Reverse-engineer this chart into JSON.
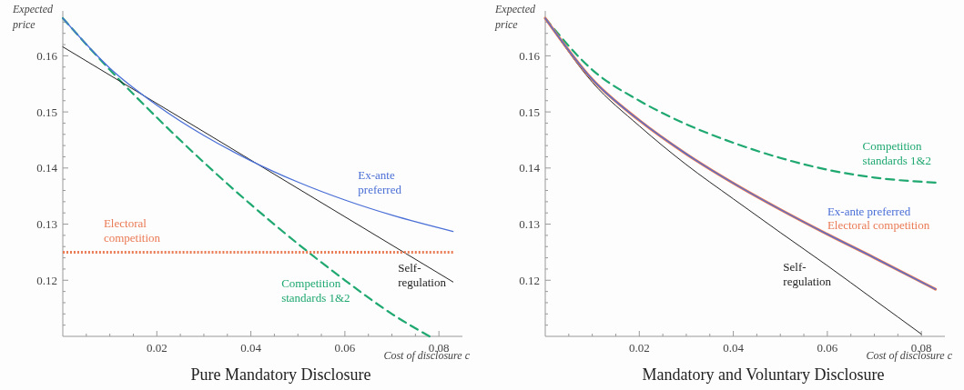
{
  "chart_data": [
    {
      "type": "line",
      "title": "Pure Mandatory Disclosure",
      "xlabel": "Cost of disclosure c",
      "ylabel": "Expected price",
      "xlim": [
        0,
        0.085
      ],
      "ylim": [
        0.11,
        0.168
      ],
      "xticks": [
        {
          "value": 0.005,
          "label": null
        },
        {
          "value": 0.01,
          "label": null
        },
        {
          "value": 0.015,
          "label": null
        },
        0.02,
        {
          "value": 0.025,
          "label": null
        },
        {
          "value": 0.03,
          "label": null
        },
        {
          "value": 0.035,
          "label": null
        },
        0.04,
        {
          "value": 0.045,
          "label": null
        },
        {
          "value": 0.05,
          "label": null
        },
        {
          "value": 0.055,
          "label": null
        },
        0.06,
        {
          "value": 0.065,
          "label": null
        },
        {
          "value": 0.07,
          "label": null
        },
        {
          "value": 0.075,
          "label": null
        },
        0.08
      ],
      "yticks": [
        {
          "value": 0.112,
          "label": null
        },
        {
          "value": 0.114,
          "label": null
        },
        {
          "value": 0.116,
          "label": null
        },
        {
          "value": 0.118,
          "label": null
        },
        0.12,
        {
          "value": 0.122,
          "label": null
        },
        {
          "value": 0.124,
          "label": null
        },
        {
          "value": 0.126,
          "label": null
        },
        {
          "value": 0.128,
          "label": null
        },
        0.13,
        {
          "value": 0.132,
          "label": null
        },
        {
          "value": 0.134,
          "label": null
        },
        {
          "value": 0.136,
          "label": null
        },
        {
          "value": 0.138,
          "label": null
        },
        0.14,
        {
          "value": 0.142,
          "label": null
        },
        {
          "value": 0.144,
          "label": null
        },
        {
          "value": 0.146,
          "label": null
        },
        {
          "value": 0.148,
          "label": null
        },
        0.15,
        {
          "value": 0.152,
          "label": null
        },
        {
          "value": 0.154,
          "label": null
        },
        {
          "value": 0.156,
          "label": null
        },
        {
          "value": 0.158,
          "label": null
        },
        0.16,
        {
          "value": 0.162,
          "label": null
        },
        {
          "value": 0.164,
          "label": null
        },
        {
          "value": 0.166,
          "label": null
        }
      ],
      "grid": false,
      "legend": false,
      "series": [
        {
          "name": "Ex-ante preferred",
          "color": "#4a6fd6",
          "line_style": "solid",
          "x": [
            0,
            0.01,
            0.02,
            0.03,
            0.04,
            0.05,
            0.06,
            0.07,
            0.083
          ],
          "values": [
            0.1667,
            0.1578,
            0.1512,
            0.1458,
            0.1413,
            0.1375,
            0.1343,
            0.1316,
            0.1287
          ]
        },
        {
          "name": "Electoral competition",
          "color": "#ea7a55",
          "line_style": "dotted",
          "x": [
            0,
            0.083
          ],
          "values": [
            0.125,
            0.125
          ]
        },
        {
          "name": "Self-regulation",
          "color": "#222222",
          "line_style": "solid",
          "x": [
            0,
            0.083
          ],
          "values": [
            0.1616,
            0.1197
          ]
        },
        {
          "name": "Competition standards 1&2",
          "color": "#1fa870",
          "line_style": "dashed",
          "x": [
            0,
            0.01,
            0.02,
            0.03,
            0.04,
            0.05,
            0.06,
            0.07,
            0.078
          ],
          "values": [
            0.1667,
            0.1575,
            0.149,
            0.141,
            0.1335,
            0.1265,
            0.12,
            0.114,
            0.11
          ]
        }
      ]
    },
    {
      "type": "line",
      "title": "Mandatory and Voluntary Disclosure",
      "xlabel": "Cost of disclosure c",
      "ylabel": "Expected price",
      "xlim": [
        0,
        0.085
      ],
      "ylim": [
        0.11,
        0.168
      ],
      "xticks": [
        {
          "value": 0.005,
          "label": null
        },
        {
          "value": 0.01,
          "label": null
        },
        {
          "value": 0.015,
          "label": null
        },
        0.02,
        {
          "value": 0.025,
          "label": null
        },
        {
          "value": 0.03,
          "label": null
        },
        {
          "value": 0.035,
          "label": null
        },
        0.04,
        {
          "value": 0.045,
          "label": null
        },
        {
          "value": 0.05,
          "label": null
        },
        {
          "value": 0.055,
          "label": null
        },
        0.06,
        {
          "value": 0.065,
          "label": null
        },
        {
          "value": 0.07,
          "label": null
        },
        {
          "value": 0.075,
          "label": null
        },
        0.08
      ],
      "yticks": [
        {
          "value": 0.112,
          "label": null
        },
        {
          "value": 0.114,
          "label": null
        },
        {
          "value": 0.116,
          "label": null
        },
        {
          "value": 0.118,
          "label": null
        },
        0.12,
        {
          "value": 0.122,
          "label": null
        },
        {
          "value": 0.124,
          "label": null
        },
        {
          "value": 0.126,
          "label": null
        },
        {
          "value": 0.128,
          "label": null
        },
        0.13,
        {
          "value": 0.132,
          "label": null
        },
        {
          "value": 0.134,
          "label": null
        },
        {
          "value": 0.136,
          "label": null
        },
        {
          "value": 0.138,
          "label": null
        },
        0.14,
        {
          "value": 0.142,
          "label": null
        },
        {
          "value": 0.144,
          "label": null
        },
        {
          "value": 0.146,
          "label": null
        },
        {
          "value": 0.148,
          "label": null
        },
        0.15,
        {
          "value": 0.152,
          "label": null
        },
        {
          "value": 0.154,
          "label": null
        },
        {
          "value": 0.156,
          "label": null
        },
        {
          "value": 0.158,
          "label": null
        },
        0.16,
        {
          "value": 0.162,
          "label": null
        },
        {
          "value": 0.164,
          "label": null
        },
        {
          "value": 0.166,
          "label": null
        }
      ],
      "grid": false,
      "legend": false,
      "series": [
        {
          "name": "Ex-ante preferred",
          "color": "#4a6fd6",
          "line_style": "solid",
          "x": [
            0,
            0.01,
            0.02,
            0.03,
            0.04,
            0.05,
            0.06,
            0.07,
            0.083
          ],
          "values": [
            0.1667,
            0.1558,
            0.1485,
            0.1425,
            0.1373,
            0.1326,
            0.1282,
            0.124,
            0.1184
          ]
        },
        {
          "name": "Electoral competition",
          "color": "#ea7a55",
          "line_style": "solid",
          "x": [
            0,
            0.01,
            0.02,
            0.03,
            0.04,
            0.05,
            0.06,
            0.07,
            0.083
          ],
          "values": [
            0.1667,
            0.1558,
            0.1485,
            0.1425,
            0.1373,
            0.1326,
            0.1282,
            0.124,
            0.1184
          ]
        },
        {
          "name": "Self-regulation",
          "color": "#222222",
          "line_style": "solid",
          "x": [
            0,
            0.01,
            0.02,
            0.03,
            0.04,
            0.05,
            0.06,
            0.07,
            0.08
          ],
          "values": [
            0.1667,
            0.1553,
            0.1475,
            0.1406,
            0.1345,
            0.1285,
            0.1226,
            0.1165,
            0.1104
          ]
        },
        {
          "name": "Competition standards 1&2",
          "color": "#1fa870",
          "line_style": "dashed",
          "x": [
            0,
            0.01,
            0.02,
            0.03,
            0.04,
            0.05,
            0.06,
            0.07,
            0.083
          ],
          "values": [
            0.1667,
            0.1575,
            0.152,
            0.1478,
            0.1445,
            0.1418,
            0.1397,
            0.1383,
            0.1374
          ]
        }
      ]
    }
  ]
}
